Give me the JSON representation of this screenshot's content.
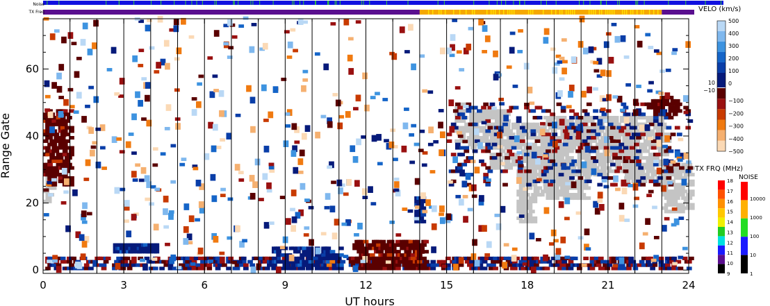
{
  "chart_data": {
    "type": "heatmap",
    "xlabel": "UT hours",
    "ylabel": "Range Gate",
    "xlim": [
      0,
      24
    ],
    "ylim": [
      -1,
      75
    ],
    "x_ticks": [
      0,
      3,
      6,
      9,
      12,
      15,
      18,
      21,
      24
    ],
    "y_ticks": [
      0,
      20,
      40,
      60
    ],
    "hour_lines": [
      1,
      2,
      3,
      4,
      5,
      6,
      7,
      8,
      9,
      10,
      11,
      12,
      13,
      14,
      15,
      16,
      17,
      18,
      19,
      20,
      21,
      22,
      23
    ],
    "grid": false,
    "top_bars": {
      "noise_label": "Noise",
      "txfreq_label": "TX Freq",
      "noise_color": "#1010e0",
      "noise_flecks_color": "#33cc33",
      "txfreq_segments": [
        {
          "x0": 0,
          "x1": 14.0,
          "color": "#5a0f8f"
        },
        {
          "x0": 14.0,
          "x1": 23.0,
          "color": "#f5a800"
        },
        {
          "x0": 23.0,
          "x1": 24,
          "color": "#5a0f8f"
        }
      ]
    },
    "velocity_scale": {
      "title": "VELO (km/s)",
      "upper_labels": [
        "500",
        "400",
        "300",
        "200",
        "100",
        "0"
      ],
      "upper_values": [
        500,
        400,
        300,
        200,
        100,
        0
      ],
      "upper_colors": [
        "#b9d8f5",
        "#7fb8ee",
        "#3d93e0",
        "#1565c8",
        "#0a3ea8",
        "#061a7a"
      ],
      "mid_labels": [
        "10",
        "−10"
      ],
      "lower_labels": [
        "−100",
        "−200",
        "−300",
        "−400",
        "−500"
      ],
      "lower_values": [
        -100,
        -200,
        -300,
        -400,
        -500
      ],
      "lower_colors": [
        "#5a0000",
        "#991010",
        "#c83a00",
        "#f07a10",
        "#f5b070",
        "#fbd9b5"
      ]
    },
    "txfreq_scale": {
      "title": "TX FRQ (MHz)",
      "labels": [
        "18",
        "17",
        "16",
        "15",
        "14",
        "13",
        "12",
        "11",
        "10",
        "9"
      ],
      "colors": [
        "#ff0000",
        "#ff5000",
        "#ff9000",
        "#ffc800",
        "#f0f000",
        "#22cc22",
        "#00e0e0",
        "#1a1aff",
        "#5a0f8f",
        "#000000"
      ]
    },
    "noise_scale": {
      "title": "NOISE",
      "labels": [
        "10000",
        "1000",
        "100",
        "10",
        "1"
      ],
      "colors": [
        "#ff0000",
        "#ffb000",
        "#22dd22",
        "#1a1aff",
        "#000000"
      ]
    },
    "ground_scatter_color": "#c4c4c4",
    "ground_scatter_regions": [
      {
        "x0": 15.3,
        "x1": 16.0,
        "y0": 38,
        "y1": 50
      },
      {
        "x0": 15.8,
        "x1": 17.2,
        "y0": 36,
        "y1": 48
      },
      {
        "x0": 16.6,
        "x1": 18.6,
        "y0": 30,
        "y1": 44
      },
      {
        "x0": 17.6,
        "x1": 19.4,
        "y0": 22,
        "y1": 36
      },
      {
        "x0": 18.6,
        "x1": 20.2,
        "y0": 21,
        "y1": 46
      },
      {
        "x0": 20.0,
        "x1": 22.0,
        "y0": 28,
        "y1": 46
      },
      {
        "x0": 21.6,
        "x1": 23.2,
        "y0": 26,
        "y1": 46
      },
      {
        "x0": 23.0,
        "x1": 24.0,
        "y0": 17,
        "y1": 32
      },
      {
        "x0": 0.0,
        "x1": 0.3,
        "y0": 20,
        "y1": 30
      },
      {
        "x0": 17.6,
        "x1": 18.2,
        "y0": 14,
        "y1": 22
      }
    ],
    "echo_bands": [
      {
        "x0": 0.0,
        "x1": 24.0,
        "y0": 0,
        "y1": 4,
        "density": 0.45,
        "palette": "mixed"
      },
      {
        "x0": 8.5,
        "x1": 11.0,
        "y0": 0,
        "y1": 7,
        "density": 0.55,
        "palette": "neg"
      },
      {
        "x0": 11.5,
        "x1": 14.2,
        "y0": 0,
        "y1": 9,
        "density": 0.6,
        "palette": "pos"
      },
      {
        "x0": 2.6,
        "x1": 4.2,
        "y0": 5,
        "y1": 8,
        "density": 0.9,
        "palette": "neg"
      },
      {
        "x0": 0.0,
        "x1": 1.0,
        "y0": 25,
        "y1": 48,
        "density": 0.55,
        "palette": "pos"
      },
      {
        "x0": 15.0,
        "x1": 24.0,
        "y0": 25,
        "y1": 50,
        "density": 0.12,
        "palette": "mixed"
      },
      {
        "x0": 13.8,
        "x1": 14.1,
        "y0": 14,
        "y1": 22,
        "density": 0.8,
        "palette": "neg"
      },
      {
        "x0": 22.6,
        "x1": 23.6,
        "y0": 46,
        "y1": 52,
        "density": 0.5,
        "palette": "pos"
      }
    ]
  }
}
